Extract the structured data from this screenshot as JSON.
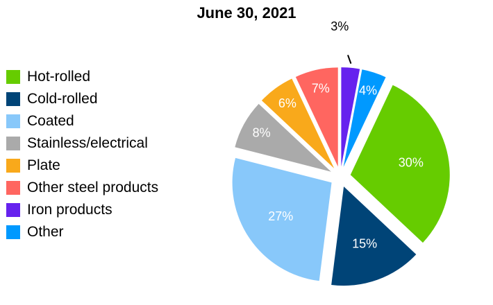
{
  "chart_data": {
    "type": "pie",
    "title": "June 30, 2021",
    "legend_position": "left",
    "slices": [
      {
        "name": "Hot-rolled",
        "value": 30,
        "label": "30%",
        "color": "#66cc00"
      },
      {
        "name": "Cold-rolled",
        "value": 15,
        "label": "15%",
        "color": "#004477"
      },
      {
        "name": "Coated",
        "value": 27,
        "label": "27%",
        "color": "#88c8fa"
      },
      {
        "name": "Stainless/electrical",
        "value": 8,
        "label": "8%",
        "color": "#aaaaaa"
      },
      {
        "name": "Plate",
        "value": 6,
        "label": "6%",
        "color": "#f9a91b"
      },
      {
        "name": "Other steel products",
        "value": 7,
        "label": "7%",
        "color": "#ff6660"
      },
      {
        "name": "Iron products",
        "value": 3,
        "label": "3%",
        "color": "#6622ee"
      },
      {
        "name": "Other",
        "value": 4,
        "label": "4%",
        "color": "#0099ff"
      }
    ]
  }
}
